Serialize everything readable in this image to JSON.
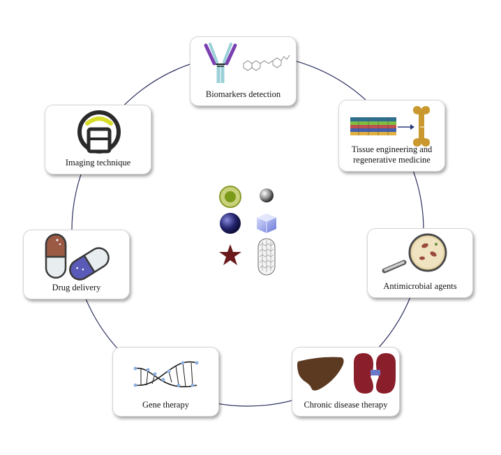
{
  "diagram": {
    "cards": [
      {
        "id": "biomarkers",
        "label": "Biomarkers detection"
      },
      {
        "id": "tissue",
        "label_line1": "Tissue engineering and",
        "label_line2": "regenerative medicine"
      },
      {
        "id": "antimicrobial",
        "label": "Antimicrobial agents"
      },
      {
        "id": "chronic",
        "label": "Chronic disease therapy"
      },
      {
        "id": "gene",
        "label": "Gene therapy"
      },
      {
        "id": "drug",
        "label": "Drug delivery"
      },
      {
        "id": "imaging",
        "label": "Imaging technique"
      }
    ],
    "center_icons": [
      "core-shell-sphere-icon",
      "metal-sphere-icon",
      "dark-blue-sphere-icon",
      "nanocube-icon",
      "star-nanoparticle-icon",
      "nanotube-icon"
    ],
    "colors": {
      "ring": "#2b2f5e",
      "card_border": "#d4d4d4"
    }
  }
}
